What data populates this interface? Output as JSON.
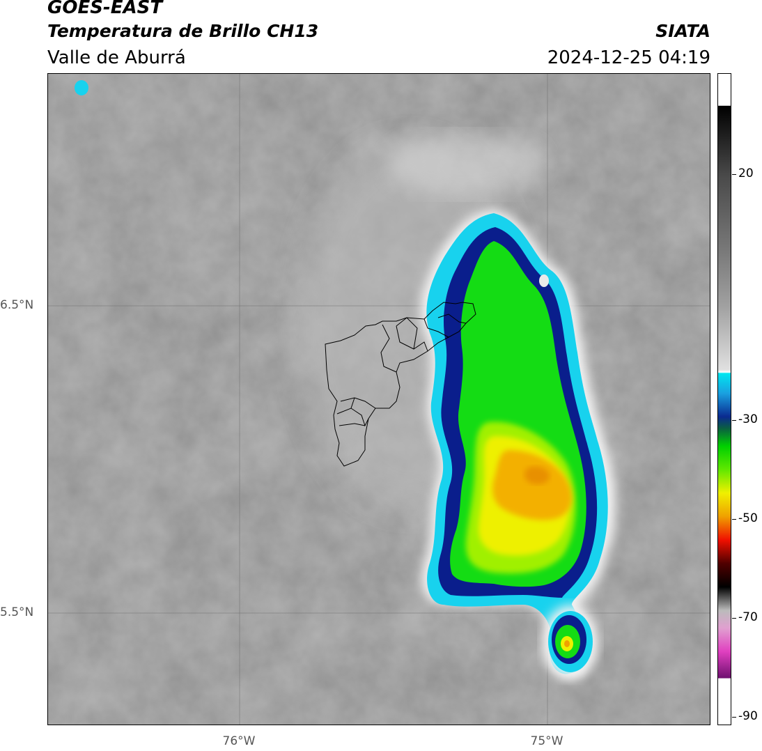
{
  "header": {
    "satellite": "GOES-EAST",
    "product": "Temperatura de Brillo CH13",
    "region": "Valle de Aburrá",
    "organization": "SIATA",
    "datetime": "2024-12-25 04:19"
  },
  "map": {
    "lat_labels": [
      "6.5°N",
      "5.5°N"
    ],
    "lon_labels": [
      "76°W",
      "75°W"
    ],
    "lat_values": [
      6.5,
      5.5
    ],
    "lon_values": [
      -76.0,
      -75.0
    ]
  },
  "colorbar": {
    "tick_labels": [
      "20",
      "-30",
      "-50",
      "-70",
      "-90"
    ],
    "tick_values": [
      20,
      -30,
      -50,
      -70,
      -90
    ],
    "range": [
      -92,
      30
    ]
  },
  "colors": {
    "gray_background": "#8c8c8c",
    "cold_cloud_cyan": "#00c8e6",
    "deep_blue": "#0a1e8c",
    "green": "#14dc14",
    "yellow": "#f0f000",
    "orange": "#f0a000",
    "boundaries": "#000000"
  }
}
